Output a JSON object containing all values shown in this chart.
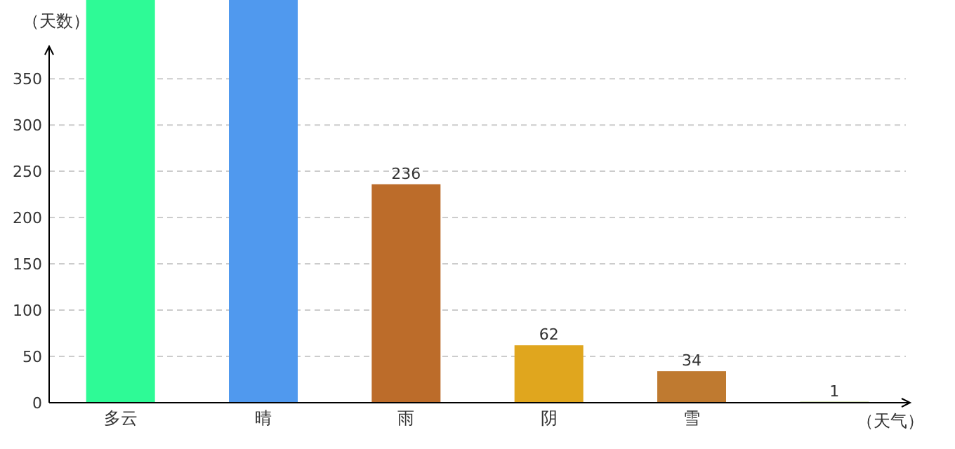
{
  "chart_data": {
    "type": "bar",
    "xlabel": "（天气）",
    "ylabel": "（天数）",
    "categories": [
      "多云",
      "晴",
      "雨",
      "阴",
      "雪",
      null
    ],
    "values": [
      435,
      435,
      236,
      62,
      34,
      1
    ],
    "colors": [
      "#2efa96",
      "#5099ee",
      "#bc6c2a",
      "#e0a61e",
      "#bf7a30",
      "#8fb030"
    ],
    "value_labels": [
      null,
      null,
      "236",
      "62",
      "34",
      "1"
    ],
    "ylim": [
      0,
      435
    ],
    "yticks": [
      0,
      50,
      100,
      150,
      200,
      250,
      300,
      350
    ],
    "grid": "y"
  }
}
